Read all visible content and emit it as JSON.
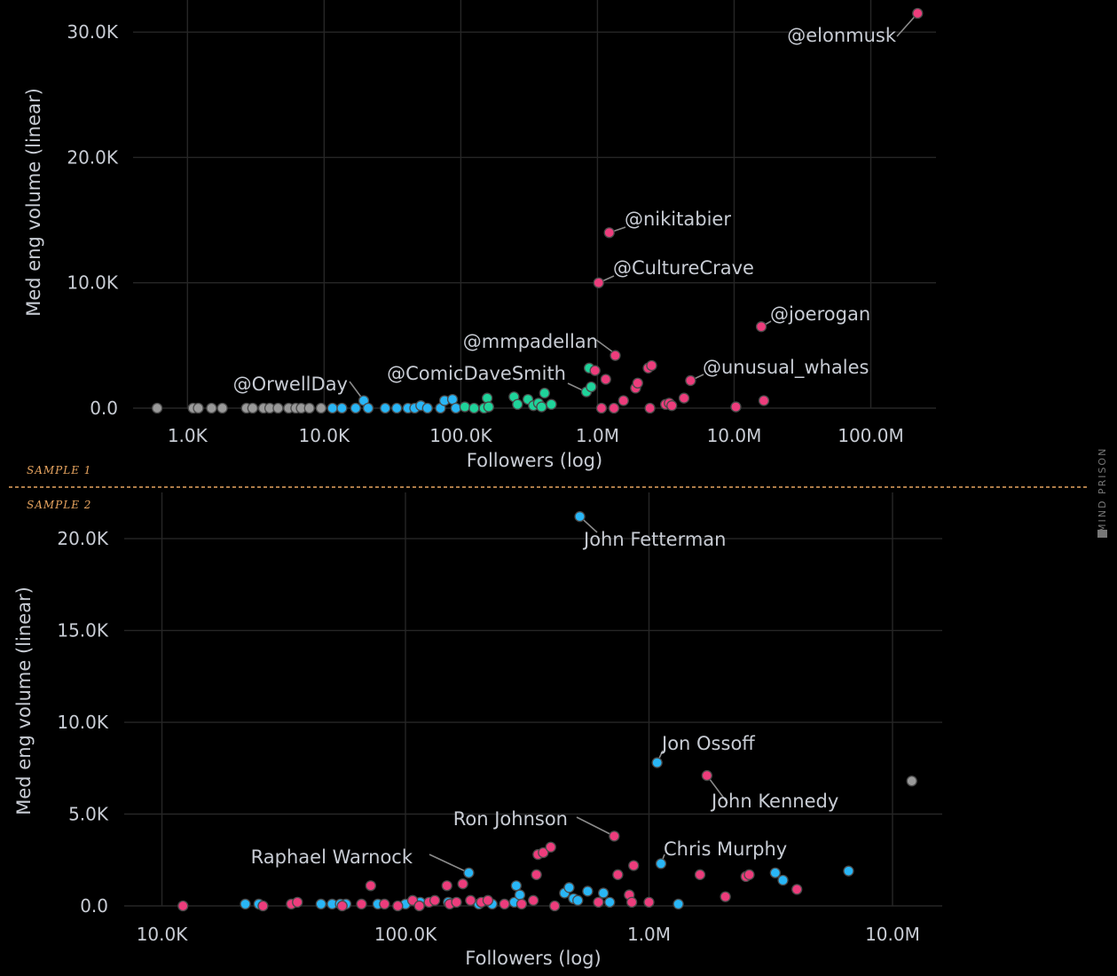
{
  "colors": {
    "background": "#000000",
    "gray": "#9a9a9a",
    "blue": "#29b6f6",
    "green": "#1fd39a",
    "pink": "#ec3d7c",
    "divider": "#e8a560"
  },
  "labels": {
    "sample1": "SAMPLE 1",
    "sample2": "SAMPLE 2",
    "watermark": "MIND PRISON"
  },
  "chart_data": [
    {
      "type": "scatter",
      "title": "",
      "xlabel": "Followers (log)",
      "ylabel": "Med eng volume (linear)",
      "x_scale": "log",
      "xlim": [
        400,
        300000000
      ],
      "ylim": [
        0,
        31500
      ],
      "xticks": [
        1000,
        10000,
        100000,
        1000000,
        10000000,
        100000000
      ],
      "xtick_labels": [
        "1.0K",
        "10.0K",
        "100.0K",
        "1.0M",
        "10.0M",
        "100.0M"
      ],
      "yticks": [
        0,
        10000,
        20000,
        30000
      ],
      "ytick_labels": [
        "0.0",
        "10.0K",
        "20.0K",
        "30.0K"
      ],
      "grid": true,
      "series": [
        {
          "color": "gray",
          "points": [
            [
              600,
              0
            ],
            [
              1100,
              0
            ],
            [
              1200,
              0
            ],
            [
              1500,
              0
            ],
            [
              1800,
              0
            ],
            [
              2700,
              0
            ],
            [
              3000,
              0
            ],
            [
              3600,
              0
            ],
            [
              4000,
              0
            ],
            [
              4600,
              0
            ],
            [
              5500,
              0
            ],
            [
              6200,
              0
            ],
            [
              6800,
              0
            ],
            [
              7800,
              0
            ],
            [
              9500,
              0
            ]
          ]
        },
        {
          "color": "blue",
          "points": [
            [
              11500,
              0
            ],
            [
              13500,
              0
            ],
            [
              17000,
              0
            ],
            [
              19500,
              600
            ],
            [
              21000,
              0
            ],
            [
              28000,
              0
            ],
            [
              34000,
              0
            ],
            [
              41000,
              0
            ],
            [
              46000,
              0
            ],
            [
              51000,
              200
            ],
            [
              57000,
              0
            ],
            [
              71000,
              0
            ],
            [
              76000,
              600
            ],
            [
              87000,
              700
            ],
            [
              92000,
              0
            ]
          ]
        },
        {
          "color": "green",
          "points": [
            [
              107000,
              100
            ],
            [
              125000,
              0
            ],
            [
              148000,
              0
            ],
            [
              156000,
              800
            ],
            [
              160000,
              100
            ],
            [
              245000,
              900
            ],
            [
              260000,
              300
            ],
            [
              310000,
              700
            ],
            [
              340000,
              200
            ],
            [
              370000,
              400
            ],
            [
              390000,
              100
            ],
            [
              410000,
              1200
            ],
            [
              460000,
              300
            ],
            [
              830000,
              1300
            ],
            [
              870000,
              3200
            ],
            [
              900000,
              1700
            ]
          ]
        },
        {
          "color": "pink",
          "points": [
            [
              960000,
              3000
            ],
            [
              1020000,
              10000
            ],
            [
              1070000,
              0
            ],
            [
              1150000,
              2300
            ],
            [
              1220000,
              14000
            ],
            [
              1320000,
              0
            ],
            [
              1350000,
              4200
            ],
            [
              1550000,
              600
            ],
            [
              1900000,
              1600
            ],
            [
              1970000,
              2000
            ],
            [
              2350000,
              3200
            ],
            [
              2420000,
              0
            ],
            [
              2490000,
              3400
            ],
            [
              3150000,
              300
            ],
            [
              3350000,
              400
            ],
            [
              3500000,
              200
            ],
            [
              4300000,
              800
            ],
            [
              4800000,
              2200
            ],
            [
              10300000,
              100
            ],
            [
              15800000,
              6500
            ],
            [
              16500000,
              600
            ],
            [
              220000000,
              31500
            ]
          ]
        }
      ],
      "annotations": [
        {
          "text": "@elonmusk",
          "x": 220000000,
          "y": 31500
        },
        {
          "text": "@nikitabier",
          "x": 1220000,
          "y": 14000
        },
        {
          "text": "@CultureCrave",
          "x": 1020000,
          "y": 10000
        },
        {
          "text": "@joerogan",
          "x": 15800000,
          "y": 6500
        },
        {
          "text": "@mmpadellan",
          "x": 1400000,
          "y": 4200
        },
        {
          "text": "@unusual_whales",
          "x": 4800000,
          "y": 2200
        },
        {
          "text": "@ComicDaveSmith",
          "x": 860000,
          "y": 1200
        },
        {
          "text": "@OrwellDay",
          "x": 19500,
          "y": 600
        }
      ]
    },
    {
      "type": "scatter",
      "title": "",
      "xlabel": "Followers (log)",
      "ylabel": "Med eng volume (linear)",
      "x_scale": "log",
      "xlim": [
        7000,
        16000000
      ],
      "ylim": [
        0,
        21500
      ],
      "xticks": [
        10000,
        100000,
        1000000,
        10000000
      ],
      "xtick_labels": [
        "10.0K",
        "100.0K",
        "1.0M",
        "10.0M"
      ],
      "yticks": [
        0,
        5000,
        10000,
        15000,
        20000
      ],
      "ytick_labels": [
        "0.0",
        "5.0K",
        "10.0K",
        "15.0K",
        "20.0K"
      ],
      "grid": true,
      "series": [
        {
          "color": "blue",
          "points": [
            [
              22000,
              100
            ],
            [
              25000,
              100
            ],
            [
              45000,
              100
            ],
            [
              50000,
              100
            ],
            [
              54000,
              100
            ],
            [
              57000,
              100
            ],
            [
              77000,
              100
            ],
            [
              100000,
              100
            ],
            [
              115000,
              200
            ],
            [
              150000,
              200
            ],
            [
              182000,
              1800
            ],
            [
              200000,
              100
            ],
            [
              227000,
              100
            ],
            [
              280000,
              200
            ],
            [
              285000,
              1100
            ],
            [
              295000,
              600
            ],
            [
              450000,
              700
            ],
            [
              470000,
              1000
            ],
            [
              490000,
              400
            ],
            [
              510000,
              300
            ],
            [
              560000,
              800
            ],
            [
              650000,
              700
            ],
            [
              690000,
              200
            ],
            [
              1080000,
              7800
            ],
            [
              1120000,
              2300
            ],
            [
              1320000,
              100
            ],
            [
              3300000,
              1800
            ],
            [
              3550000,
              1400
            ],
            [
              6600000,
              1900
            ],
            [
              520000,
              21200
            ]
          ]
        },
        {
          "color": "pink",
          "points": [
            [
              12200,
              0
            ],
            [
              26000,
              0
            ],
            [
              34000,
              100
            ],
            [
              36000,
              200
            ],
            [
              55000,
              0
            ],
            [
              66000,
              100
            ],
            [
              72000,
              1100
            ],
            [
              82000,
              100
            ],
            [
              93000,
              0
            ],
            [
              107000,
              300
            ],
            [
              114000,
              0
            ],
            [
              125000,
              200
            ],
            [
              132000,
              300
            ],
            [
              148000,
              1100
            ],
            [
              152000,
              100
            ],
            [
              162000,
              200
            ],
            [
              172000,
              1200
            ],
            [
              185000,
              300
            ],
            [
              205000,
              200
            ],
            [
              218000,
              300
            ],
            [
              255000,
              100
            ],
            [
              300000,
              100
            ],
            [
              335000,
              300
            ],
            [
              345000,
              1700
            ],
            [
              350000,
              2800
            ],
            [
              368000,
              2900
            ],
            [
              395000,
              3200
            ],
            [
              410000,
              0
            ],
            [
              620000,
              200
            ],
            [
              720000,
              3800
            ],
            [
              745000,
              1700
            ],
            [
              830000,
              600
            ],
            [
              850000,
              200
            ],
            [
              865000,
              2200
            ],
            [
              1000000,
              200
            ],
            [
              1730000,
              7100
            ],
            [
              1620000,
              1700
            ],
            [
              2060000,
              500
            ],
            [
              2500000,
              1600
            ],
            [
              2580000,
              1700
            ],
            [
              4050000,
              900
            ]
          ]
        },
        {
          "color": "gray",
          "points": [
            [
              12000000,
              6800
            ]
          ]
        }
      ],
      "annotations": [
        {
          "text": "John Fetterman",
          "x": 520000,
          "y": 21200
        },
        {
          "text": "Jon Ossoff",
          "x": 1080000,
          "y": 7800
        },
        {
          "text": "John Kennedy",
          "x": 1730000,
          "y": 7100
        },
        {
          "text": "Ron Johnson",
          "x": 720000,
          "y": 3800
        },
        {
          "text": "Chris Murphy",
          "x": 1120000,
          "y": 2300
        },
        {
          "text": "Raphael Warnock",
          "x": 182000,
          "y": 1800
        }
      ]
    }
  ]
}
